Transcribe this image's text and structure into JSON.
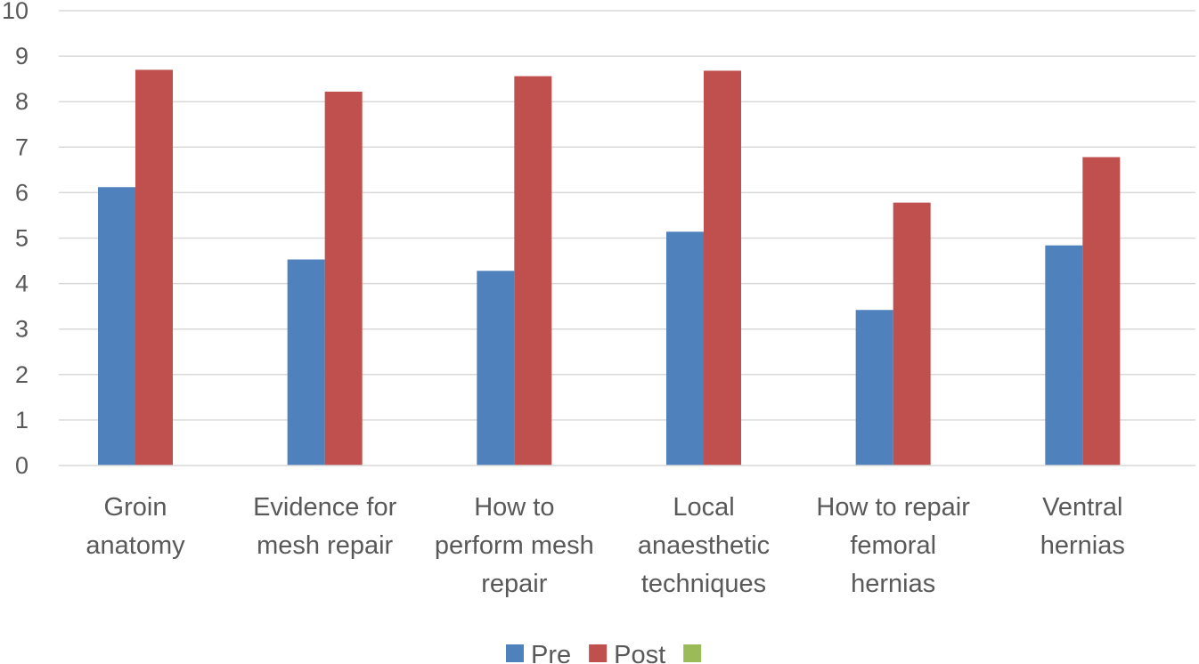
{
  "chart_data": {
    "type": "bar",
    "title": "",
    "xlabel": "",
    "ylabel": "",
    "ylim": [
      0,
      10
    ],
    "yticks": [
      0,
      1,
      2,
      3,
      4,
      5,
      6,
      7,
      8,
      9,
      10
    ],
    "grid": true,
    "legend_position": "bottom",
    "categories": [
      [
        "Groin",
        "anatomy"
      ],
      [
        "Evidence for",
        "mesh repair"
      ],
      [
        "How to",
        "perform mesh",
        "repair"
      ],
      [
        "Local",
        "anaesthetic",
        "techniques"
      ],
      [
        "How to repair",
        "femoral",
        "hernias"
      ],
      [
        "Ventral",
        "hernias"
      ]
    ],
    "series": [
      {
        "name": "Pre",
        "color": "#4f81bd",
        "values": [
          6.12,
          4.53,
          4.28,
          5.14,
          3.42,
          4.84
        ]
      },
      {
        "name": "Post",
        "color": "#c0504d",
        "values": [
          8.7,
          8.22,
          8.56,
          8.68,
          5.78,
          6.78
        ]
      },
      {
        "name": "",
        "color": "#9bbb59",
        "values": [
          0,
          0,
          0,
          0,
          0,
          0
        ]
      }
    ]
  }
}
